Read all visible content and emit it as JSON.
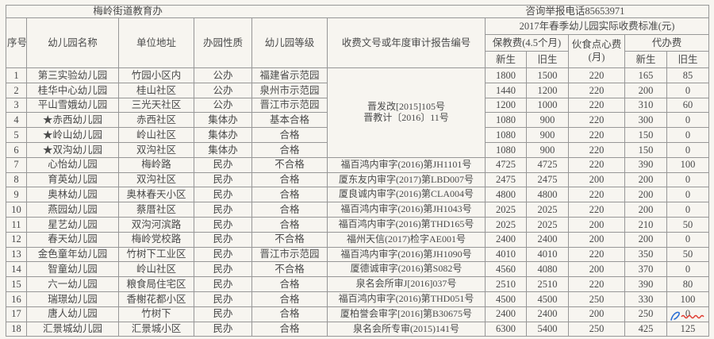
{
  "banner": {
    "left_title": "梅岭街道教育办",
    "right_title": "咨询举报电话85653971"
  },
  "header": {
    "col_seq": "序号",
    "col_name": "幼儿园名称",
    "col_address": "单位地址",
    "col_nature": "办园性质",
    "col_grade": "幼儿园等级",
    "col_doc": "收费文号或年度审计报告编号",
    "fee_group_title": "2017年春季幼儿园实际收费标准(元)",
    "fee_care": "保教费(4.5个月)",
    "fee_food_line1": "伙食点心费",
    "fee_food_line2": "(月)",
    "fee_agency": "代办费",
    "care_new": "新生",
    "care_old": "旧生",
    "agency_new": "新生",
    "agency_old": "旧生"
  },
  "table": {
    "doc_merged": {
      "covers_rows": "1-6",
      "lines": [
        "晋发改[2015]105号",
        "晋教计〔2016〕11号"
      ]
    },
    "rows": [
      {
        "seq": "1",
        "name": "第三实验幼儿园",
        "address": "竹园小区内",
        "nature": "公办",
        "grade": "福建省示范园",
        "doc": "",
        "care_new": "1800",
        "care_old": "1500",
        "food": "220",
        "agency_new": "165",
        "agency_old": "85"
      },
      {
        "seq": "2",
        "name": "桂华中心幼儿园",
        "address": "桂山社区",
        "nature": "公办",
        "grade": "泉州市示范园",
        "doc": "",
        "care_new": "1440",
        "care_old": "1200",
        "food": "220",
        "agency_new": "200",
        "agency_old": "0"
      },
      {
        "seq": "3",
        "name": "平山雪娥幼儿园",
        "address": "三光天社区",
        "nature": "公办",
        "grade": "晋江市示范园",
        "doc": "",
        "care_new": "1200",
        "care_old": "1000",
        "food": "220",
        "agency_new": "310",
        "agency_old": "60"
      },
      {
        "seq": "4",
        "name": "★赤西幼儿园",
        "address": "赤西社区",
        "nature": "集体办",
        "grade": "基本合格",
        "doc": "",
        "care_new": "1080",
        "care_old": "900",
        "food": "220",
        "agency_new": "300",
        "agency_old": "0"
      },
      {
        "seq": "5",
        "name": "★岭山幼儿园",
        "address": "岭山社区",
        "nature": "集体办",
        "grade": "合格",
        "doc": "",
        "care_new": "1080",
        "care_old": "900",
        "food": "220",
        "agency_new": "150",
        "agency_old": "0"
      },
      {
        "seq": "6",
        "name": "★双沟幼儿园",
        "address": "双沟社区",
        "nature": "集体办",
        "grade": "合格",
        "doc": "",
        "care_new": "1080",
        "care_old": "900",
        "food": "220",
        "agency_new": "150",
        "agency_old": "0"
      },
      {
        "seq": "7",
        "name": "心怡幼儿园",
        "address": "梅岭路",
        "nature": "民办",
        "grade": "不合格",
        "doc": "福百鸿内审字(2016)第JH1101号",
        "care_new": "4725",
        "care_old": "4725",
        "food": "220",
        "agency_new": "390",
        "agency_old": "100"
      },
      {
        "seq": "8",
        "name": "育英幼儿园",
        "address": "双沟社区",
        "nature": "民办",
        "grade": "合格",
        "doc": "厦东友内审字(2017)第LBD007号",
        "care_new": "2475",
        "care_old": "2475",
        "food": "200",
        "agency_new": "200",
        "agency_old": "0"
      },
      {
        "seq": "9",
        "name": "奥林幼儿园",
        "address": "奥林春天小区",
        "nature": "民办",
        "grade": "合格",
        "doc": "厦良诚内审字(2016)第CLA004号",
        "care_new": "4800",
        "care_old": "4800",
        "food": "220",
        "agency_new": "200",
        "agency_old": "0"
      },
      {
        "seq": "10",
        "name": "燕园幼儿园",
        "address": "蔡厝社区",
        "nature": "民办",
        "grade": "合格",
        "doc": "福百鸿内审字(2016)第JH1043号",
        "care_new": "2025",
        "care_old": "2025",
        "food": "220",
        "agency_new": "200",
        "agency_old": "0"
      },
      {
        "seq": "11",
        "name": "星艺幼儿园",
        "address": "双沟河滨路",
        "nature": "民办",
        "grade": "合格",
        "doc": "福百鸿内审字(2016)第THD165号",
        "care_new": "2025",
        "care_old": "2025",
        "food": "200",
        "agency_new": "210",
        "agency_old": "50"
      },
      {
        "seq": "12",
        "name": "春天幼儿园",
        "address": "梅岭党校路",
        "nature": "民办",
        "grade": "不合格",
        "doc": "福州天信(2017)检字AE001号",
        "care_new": "2400",
        "care_old": "2400",
        "food": "200",
        "agency_new": "200",
        "agency_old": "0"
      },
      {
        "seq": "13",
        "name": "金色童年幼儿园",
        "address": "竹树下工业区",
        "nature": "民办",
        "grade": "晋江市示范园",
        "doc": "福百鸿内审字(2016)第JH1090号",
        "care_new": "4010",
        "care_old": "4010",
        "food": "220",
        "agency_new": "350",
        "agency_old": "50"
      },
      {
        "seq": "14",
        "name": "智童幼儿园",
        "address": "岭山社区",
        "nature": "民办",
        "grade": "不合格",
        "doc": "厦德诚审字(2016)第S082号",
        "care_new": "4560",
        "care_old": "4080",
        "food": "200",
        "agency_new": "370",
        "agency_old": "0"
      },
      {
        "seq": "15",
        "name": "六一幼儿园",
        "address": "粮食局住宅区",
        "nature": "民办",
        "grade": "合格",
        "doc": "泉名会所审J[2016]037号",
        "care_new": "2510",
        "care_old": "2510",
        "food": "220",
        "agency_new": "390",
        "agency_old": "80"
      },
      {
        "seq": "16",
        "name": "瑞璟幼儿园",
        "address": "香榭花都小区",
        "nature": "民办",
        "grade": "合格",
        "doc": "福百鸿内审字(2016)第THD051号",
        "care_new": "4500",
        "care_old": "4500",
        "food": "250",
        "agency_new": "330",
        "agency_old": "100"
      },
      {
        "seq": "17",
        "name": "唐人幼儿园",
        "address": "竹树下",
        "nature": "民办",
        "grade": "合格",
        "doc": "厦柏誉会审字[2016]第B30675号",
        "care_new": "2400",
        "care_old": "2400",
        "food": "200",
        "agency_new": "250",
        "agency_old": "0"
      },
      {
        "seq": "18",
        "name": "汇景城幼儿园",
        "address": "汇景城小区",
        "nature": "民办",
        "grade": "合格",
        "doc": "泉名会所专审(2015)141号",
        "care_new": "6300",
        "care_old": "5400",
        "food": "250",
        "agency_new": "425",
        "agency_old": "125"
      }
    ]
  },
  "colors": {
    "page_background": "#f7f5f0",
    "grid_border": "#979797",
    "text": "#4a4a4a",
    "watermark_blue": "#2b6fd4",
    "watermark_red": "#e03a2f"
  }
}
